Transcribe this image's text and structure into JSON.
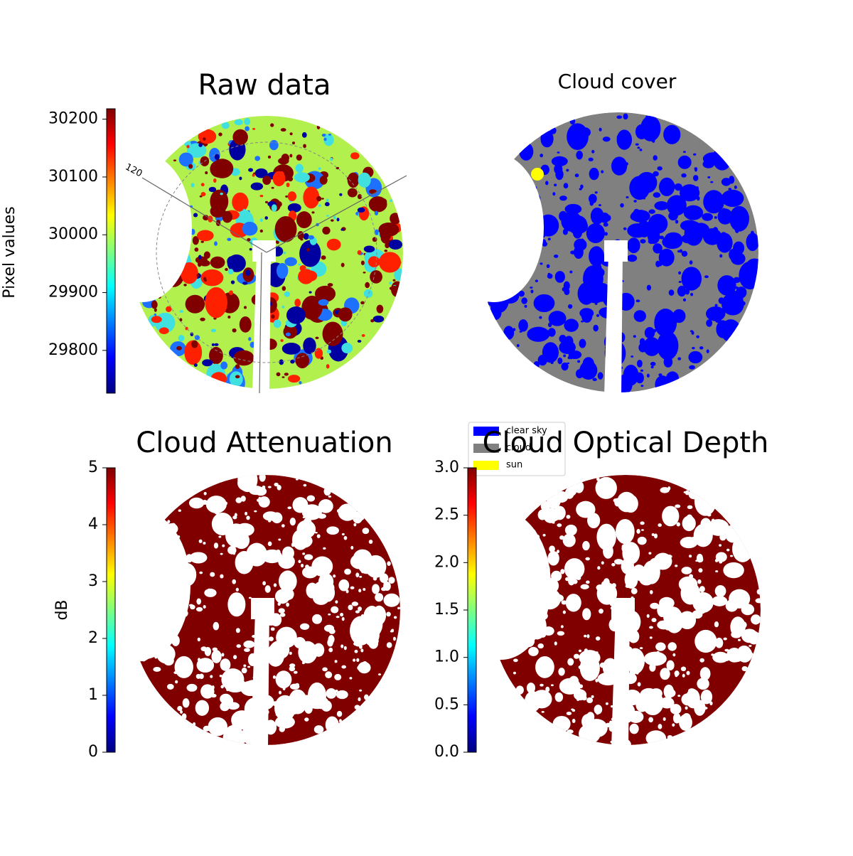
{
  "chart_data": [
    {
      "type": "image",
      "title": "Raw data",
      "ylabel": "Pixel values",
      "colormap": "jet",
      "ylim": [
        29726,
        30218
      ],
      "yticks": [
        29800,
        29900,
        30000,
        30100,
        30200
      ],
      "annotation": "120"
    },
    {
      "type": "image",
      "title": "Cloud cover",
      "series": [
        {
          "name": "clear sky",
          "color": "#0000ff"
        },
        {
          "name": "cloud",
          "color": "#808080"
        },
        {
          "name": "sun",
          "color": "#ffff00"
        }
      ]
    },
    {
      "type": "image",
      "title": "Cloud Attenuation",
      "ylabel": "dB",
      "colormap": "jet",
      "ylim": [
        0,
        5
      ],
      "yticks": [
        0,
        1,
        2,
        3,
        4,
        5
      ]
    },
    {
      "type": "image",
      "title": "Cloud Optical Depth",
      "colormap": "jet",
      "ylim": [
        0,
        3
      ],
      "yticks": [
        {
          "value": 0,
          "label": "0.0"
        },
        0.5,
        {
          "value": 1,
          "label": "1.0"
        },
        1.5,
        {
          "value": 2,
          "label": "2.0"
        },
        2.5,
        {
          "value": 3,
          "label": "3.0"
        }
      ]
    }
  ]
}
